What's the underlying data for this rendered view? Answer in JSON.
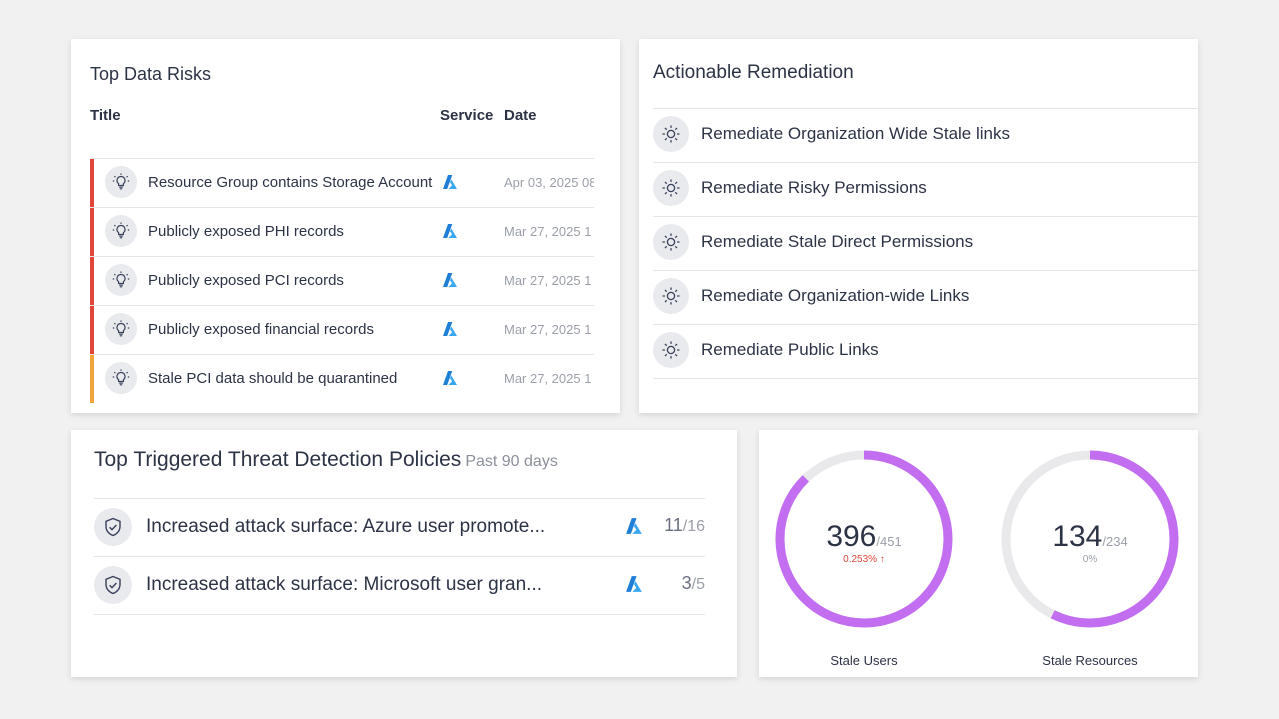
{
  "risks": {
    "title": "Top Data Risks",
    "columns": {
      "title": "Title",
      "service": "Service",
      "date": "Date"
    },
    "rows": [
      {
        "title": "Resource Group contains Storage Account",
        "service": "azure-icon",
        "date": "Apr 03, 2025 08",
        "severity_color": "#e2463a"
      },
      {
        "title": "Publicly exposed PHI records",
        "service": "azure-icon",
        "date": "Mar 27, 2025 1",
        "severity_color": "#e2463a"
      },
      {
        "title": "Publicly exposed PCI records",
        "service": "azure-icon",
        "date": "Mar 27, 2025 1",
        "severity_color": "#e2463a"
      },
      {
        "title": "Publicly exposed financial records",
        "service": "azure-icon",
        "date": "Mar 27, 2025 1",
        "severity_color": "#e2463a"
      },
      {
        "title": "Stale PCI data should be quarantined",
        "service": "azure-icon",
        "date": "Mar 27, 2025 1",
        "severity_color": "#f0a43a"
      }
    ]
  },
  "remediation": {
    "title": "Actionable Remediation",
    "items": [
      {
        "label": "Remediate Organization Wide Stale links"
      },
      {
        "label": "Remediate Risky Permissions"
      },
      {
        "label": "Remediate Stale Direct Permissions"
      },
      {
        "label": "Remediate Organization-wide Links"
      },
      {
        "label": "Remediate Public Links"
      }
    ]
  },
  "threats": {
    "title": "Top Triggered Threat Detection Policies",
    "subtitle": "Past 90 days",
    "rows": [
      {
        "label": "Increased attack surface: Azure user promote...",
        "count": "11",
        "total": "/16"
      },
      {
        "label": "Increased attack surface: Microsoft user gran...",
        "count": "3",
        "total": "/5"
      }
    ]
  },
  "stale": {
    "users": {
      "value": "396",
      "total": "/451",
      "pct": "0.253% ↑",
      "label": "Stale Users",
      "fraction": 0.878,
      "pct_color": "#e2463a"
    },
    "resources": {
      "value": "134",
      "total": "/234",
      "pct": "0%",
      "label": "Stale Resources",
      "fraction": 0.573,
      "pct_color": "#9a9fa8"
    }
  },
  "colors": {
    "donut_fill": "#c36df0",
    "donut_track": "#e9e9ec",
    "azure": "#1f7fd6"
  }
}
